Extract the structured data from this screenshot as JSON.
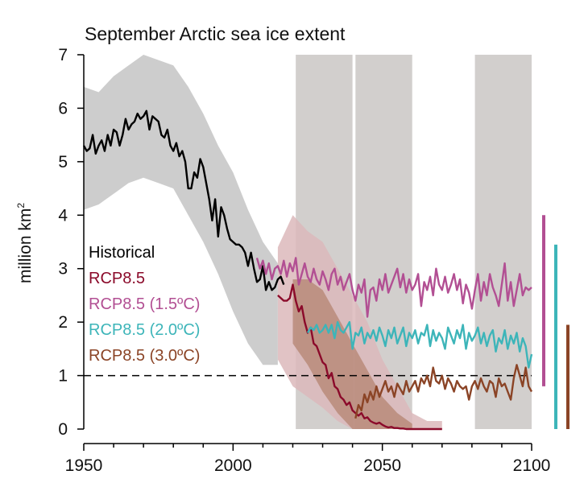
{
  "chart_data": {
    "type": "line",
    "title": "September Arctic sea ice extent",
    "ylabel_main": "million  km",
    "ylabel_sup": "2",
    "xlim": [
      1950,
      2100
    ],
    "ylim": [
      0,
      7
    ],
    "x_ticks": [
      1950,
      2000,
      2050,
      2100
    ],
    "y_ticks": [
      0,
      1,
      2,
      3,
      4,
      5,
      6,
      7
    ],
    "threshold": {
      "y": 1,
      "style": "dashed",
      "color": "#000000"
    },
    "shaded_periods": [
      {
        "start": 2021,
        "end": 2040,
        "color": "#d2cfcd"
      },
      {
        "start": 2041,
        "end": 2060,
        "color": "#d2cfcd"
      },
      {
        "start": 2081,
        "end": 2100,
        "color": "#d2cfcd"
      }
    ],
    "legend": [
      {
        "label": "Historical",
        "color": "#000000"
      },
      {
        "label": "RCP8.5",
        "color": "#8b0a2a"
      },
      {
        "label": "RCP8.5 (1.5ºC)",
        "color": "#b24f93"
      },
      {
        "label": "RCP8.5 (2.0ºC)",
        "color": "#3db5b9"
      },
      {
        "label": "RCP8.5 (3.0ºC)",
        "color": "#8b4426"
      }
    ],
    "bands": [
      {
        "label": "Historical range",
        "color": "#c4c4c4",
        "x": [
          1950,
          1955,
          1960,
          1965,
          1970,
          1975,
          1980,
          1985,
          1990,
          1995,
          2000,
          2005,
          2010,
          2015
        ],
        "upper": [
          6.4,
          6.3,
          6.6,
          6.8,
          7.0,
          6.9,
          6.8,
          6.4,
          5.9,
          5.3,
          4.8,
          4.1,
          3.5,
          3.1
        ],
        "lower": [
          4.1,
          4.2,
          4.4,
          4.6,
          4.7,
          4.6,
          4.5,
          4.0,
          3.5,
          2.9,
          2.2,
          1.6,
          1.2,
          1.2
        ]
      },
      {
        "label": "RCP8.5 range",
        "color": "#dcb8bb",
        "x": [
          2015,
          2020,
          2025,
          2030,
          2035,
          2040,
          2045,
          2050,
          2055,
          2060,
          2065,
          2070
        ],
        "upper": [
          3.4,
          4.0,
          3.7,
          3.5,
          3.0,
          2.5,
          2.0,
          1.3,
          0.8,
          0.3,
          0.15,
          0.15
        ],
        "lower": [
          1.3,
          0.8,
          0.6,
          0.4,
          0.15,
          0.0,
          0.0,
          0.0,
          0.0,
          0.0,
          0.0,
          0.0
        ]
      },
      {
        "label": "RCP8.5 overlap",
        "color": "#b88b7a",
        "x": [
          2020,
          2025,
          2030,
          2035,
          2040,
          2045,
          2050,
          2055,
          2060
        ],
        "upper": [
          2.8,
          2.8,
          2.6,
          2.1,
          1.6,
          1.1,
          0.6,
          0.3,
          0.1
        ],
        "lower": [
          1.6,
          1.2,
          0.7,
          0.3,
          0.0,
          0.0,
          0.0,
          0.0,
          0.0
        ]
      }
    ],
    "series": [
      {
        "name": "Historical",
        "color": "#000000",
        "x": [
          1950,
          1951,
          1952,
          1953,
          1954,
          1955,
          1956,
          1957,
          1958,
          1959,
          1960,
          1961,
          1962,
          1963,
          1964,
          1965,
          1966,
          1967,
          1968,
          1969,
          1970,
          1971,
          1972,
          1973,
          1974,
          1975,
          1976,
          1977,
          1978,
          1979,
          1980,
          1981,
          1982,
          1983,
          1984,
          1985,
          1986,
          1987,
          1988,
          1989,
          1990,
          1991,
          1992,
          1993,
          1994,
          1995,
          1996,
          1997,
          1998,
          1999,
          2000,
          2001,
          2002,
          2003,
          2004,
          2005,
          2006,
          2007,
          2008,
          2009,
          2010,
          2011,
          2012,
          2013,
          2014,
          2015,
          2016,
          2017
        ],
        "y": [
          5.3,
          5.2,
          5.25,
          5.5,
          5.15,
          5.3,
          5.4,
          5.2,
          5.5,
          5.3,
          5.6,
          5.55,
          5.3,
          5.5,
          5.8,
          5.6,
          5.7,
          5.75,
          5.9,
          5.8,
          5.85,
          5.95,
          5.6,
          5.85,
          5.8,
          5.75,
          5.5,
          5.45,
          5.6,
          5.3,
          5.2,
          5.35,
          5.1,
          5.2,
          5.0,
          4.5,
          4.5,
          4.8,
          4.7,
          5.05,
          4.9,
          4.6,
          4.3,
          3.9,
          4.3,
          3.6,
          4.15,
          4.0,
          3.75,
          3.55,
          3.5,
          3.45,
          3.45,
          3.4,
          3.3,
          3.05,
          3.3,
          3.0,
          2.75,
          2.8,
          3.05,
          2.6,
          2.75,
          2.6,
          2.65,
          2.8,
          2.85,
          2.7
        ]
      },
      {
        "name": "RCP8.5",
        "color": "#8b0a2a",
        "x": [
          2015,
          2016,
          2017,
          2018,
          2019,
          2020,
          2021,
          2022,
          2023,
          2024,
          2025,
          2026,
          2027,
          2028,
          2029,
          2030,
          2031,
          2032,
          2033,
          2034,
          2035,
          2036,
          2037,
          2038,
          2039,
          2040,
          2041,
          2042,
          2043,
          2044,
          2045,
          2046,
          2047,
          2048,
          2049,
          2050,
          2051,
          2052,
          2053,
          2054,
          2055,
          2056,
          2057,
          2058,
          2059,
          2060,
          2061,
          2062,
          2063,
          2064,
          2065,
          2066,
          2067,
          2068,
          2069,
          2070
        ],
        "y": [
          2.5,
          2.45,
          2.4,
          2.4,
          2.45,
          2.7,
          2.4,
          2.2,
          2.3,
          2.0,
          1.8,
          1.9,
          1.6,
          1.55,
          1.4,
          1.25,
          1.2,
          0.95,
          1.05,
          0.8,
          0.75,
          0.6,
          0.55,
          0.45,
          0.5,
          0.35,
          0.3,
          0.25,
          0.3,
          0.2,
          0.22,
          0.15,
          0.12,
          0.1,
          0.12,
          0.08,
          0.05,
          0.03,
          0.04,
          0.02,
          0.02,
          0.01,
          0.01,
          0.0,
          0.0,
          0.0,
          0.0,
          0.0,
          0.0,
          0.0,
          0.0,
          0.0,
          0.0,
          0.0,
          0.0,
          0.0
        ]
      },
      {
        "name": "RCP8.5 (1.5ºC)",
        "color": "#b24f93",
        "x": [
          2008,
          2009,
          2010,
          2011,
          2012,
          2013,
          2014,
          2015,
          2016,
          2017,
          2018,
          2019,
          2020,
          2021,
          2022,
          2023,
          2024,
          2025,
          2026,
          2027,
          2028,
          2029,
          2030,
          2031,
          2032,
          2033,
          2034,
          2035,
          2036,
          2037,
          2038,
          2039,
          2040,
          2041,
          2042,
          2043,
          2044,
          2045,
          2046,
          2047,
          2048,
          2049,
          2050,
          2051,
          2052,
          2053,
          2054,
          2055,
          2056,
          2057,
          2058,
          2059,
          2060,
          2061,
          2062,
          2063,
          2064,
          2065,
          2066,
          2067,
          2068,
          2069,
          2070,
          2071,
          2072,
          2073,
          2074,
          2075,
          2076,
          2077,
          2078,
          2079,
          2080,
          2081,
          2082,
          2083,
          2084,
          2085,
          2086,
          2087,
          2088,
          2089,
          2090,
          2091,
          2092,
          2093,
          2094,
          2095,
          2096,
          2097,
          2098,
          2099,
          2100
        ],
        "y": [
          3.2,
          3.0,
          3.15,
          2.9,
          3.1,
          2.8,
          3.0,
          3.05,
          2.9,
          3.15,
          2.85,
          3.1,
          2.95,
          3.2,
          2.7,
          2.9,
          3.1,
          2.85,
          2.75,
          3.0,
          2.8,
          2.7,
          2.95,
          2.8,
          2.6,
          2.9,
          3.0,
          2.7,
          2.85,
          2.6,
          2.75,
          2.9,
          2.6,
          2.4,
          2.7,
          2.55,
          2.8,
          2.1,
          2.6,
          2.65,
          2.4,
          2.8,
          2.6,
          2.9,
          2.55,
          2.7,
          2.85,
          3.0,
          2.65,
          2.9,
          2.55,
          2.8,
          2.6,
          2.7,
          2.9,
          2.3,
          2.75,
          2.6,
          2.85,
          2.5,
          3.0,
          2.7,
          2.6,
          2.85,
          2.55,
          2.7,
          2.9,
          2.6,
          2.8,
          2.35,
          2.7,
          2.55,
          2.25,
          2.6,
          2.9,
          2.4,
          2.75,
          2.5,
          2.9,
          2.65,
          2.5,
          2.3,
          2.7,
          3.1,
          2.4,
          2.75,
          2.3,
          2.6,
          2.9,
          2.5,
          2.65,
          2.6,
          2.65
        ]
      },
      {
        "name": "RCP8.5 (2.0ºC)",
        "color": "#3db5b9",
        "x": [
          2025,
          2026,
          2027,
          2028,
          2029,
          2030,
          2031,
          2032,
          2033,
          2034,
          2035,
          2036,
          2037,
          2038,
          2039,
          2040,
          2041,
          2042,
          2043,
          2044,
          2045,
          2046,
          2047,
          2048,
          2049,
          2050,
          2051,
          2052,
          2053,
          2054,
          2055,
          2056,
          2057,
          2058,
          2059,
          2060,
          2061,
          2062,
          2063,
          2064,
          2065,
          2066,
          2067,
          2068,
          2069,
          2070,
          2071,
          2072,
          2073,
          2074,
          2075,
          2076,
          2077,
          2078,
          2079,
          2080,
          2081,
          2082,
          2083,
          2084,
          2085,
          2086,
          2087,
          2088,
          2089,
          2090,
          2091,
          2092,
          2093,
          2094,
          2095,
          2096,
          2097,
          2098,
          2099,
          2100
        ],
        "y": [
          1.8,
          1.9,
          1.85,
          1.95,
          1.8,
          1.85,
          1.95,
          1.8,
          1.95,
          1.7,
          2.0,
          1.85,
          1.8,
          1.9,
          2.0,
          1.5,
          1.8,
          1.75,
          1.9,
          1.6,
          1.8,
          1.7,
          1.85,
          1.65,
          1.9,
          1.75,
          1.55,
          1.85,
          1.7,
          1.9,
          1.6,
          1.75,
          1.9,
          1.55,
          1.8,
          1.7,
          1.85,
          1.6,
          1.8,
          1.75,
          1.95,
          1.55,
          1.85,
          1.65,
          1.8,
          1.7,
          1.5,
          1.9,
          1.75,
          1.6,
          1.85,
          1.7,
          1.95,
          1.5,
          1.8,
          1.65,
          1.75,
          1.9,
          1.6,
          1.8,
          1.55,
          1.75,
          1.85,
          1.45,
          1.7,
          1.6,
          1.85,
          1.5,
          1.75,
          1.6,
          1.8,
          1.45,
          1.7,
          1.55,
          1.15,
          1.4
        ]
      },
      {
        "name": "RCP8.5 (3.0ºC)",
        "color": "#8b4426",
        "x": [
          2041,
          2042,
          2043,
          2044,
          2045,
          2046,
          2047,
          2048,
          2049,
          2050,
          2051,
          2052,
          2053,
          2054,
          2055,
          2056,
          2057,
          2058,
          2059,
          2060,
          2061,
          2062,
          2063,
          2064,
          2065,
          2066,
          2067,
          2068,
          2069,
          2070,
          2071,
          2072,
          2073,
          2074,
          2075,
          2076,
          2077,
          2078,
          2079,
          2080,
          2081,
          2082,
          2083,
          2084,
          2085,
          2086,
          2087,
          2088,
          2089,
          2090,
          2091,
          2092,
          2093,
          2094,
          2095,
          2096,
          2097,
          2098,
          2099,
          2100
        ],
        "y": [
          0.2,
          0.45,
          0.35,
          0.65,
          0.5,
          0.7,
          0.55,
          0.8,
          0.6,
          0.75,
          0.9,
          0.7,
          0.8,
          0.6,
          0.85,
          0.75,
          0.65,
          0.9,
          0.7,
          0.8,
          0.9,
          0.7,
          0.95,
          0.85,
          1.0,
          0.8,
          1.15,
          0.9,
          0.85,
          1.0,
          0.75,
          0.95,
          0.85,
          0.7,
          0.9,
          0.8,
          0.75,
          0.8,
          0.55,
          0.8,
          0.9,
          0.75,
          0.95,
          0.8,
          0.7,
          0.9,
          0.85,
          0.6,
          0.95,
          0.8,
          0.85,
          0.7,
          0.55,
          0.95,
          1.2,
          1.0,
          0.8,
          1.15,
          0.8,
          0.7
        ]
      }
    ],
    "side_bars": [
      {
        "label": "RCP8.5 (1.5ºC)",
        "color": "#b24f93",
        "low": 0.8,
        "high": 4.0
      },
      {
        "label": "RCP8.5 (2.0ºC)",
        "color": "#3db5b9",
        "low": 0.0,
        "high": 3.45
      },
      {
        "label": "RCP8.5 (3.0ºC)",
        "color": "#8b4426",
        "low": 0.0,
        "high": 1.95
      }
    ]
  }
}
